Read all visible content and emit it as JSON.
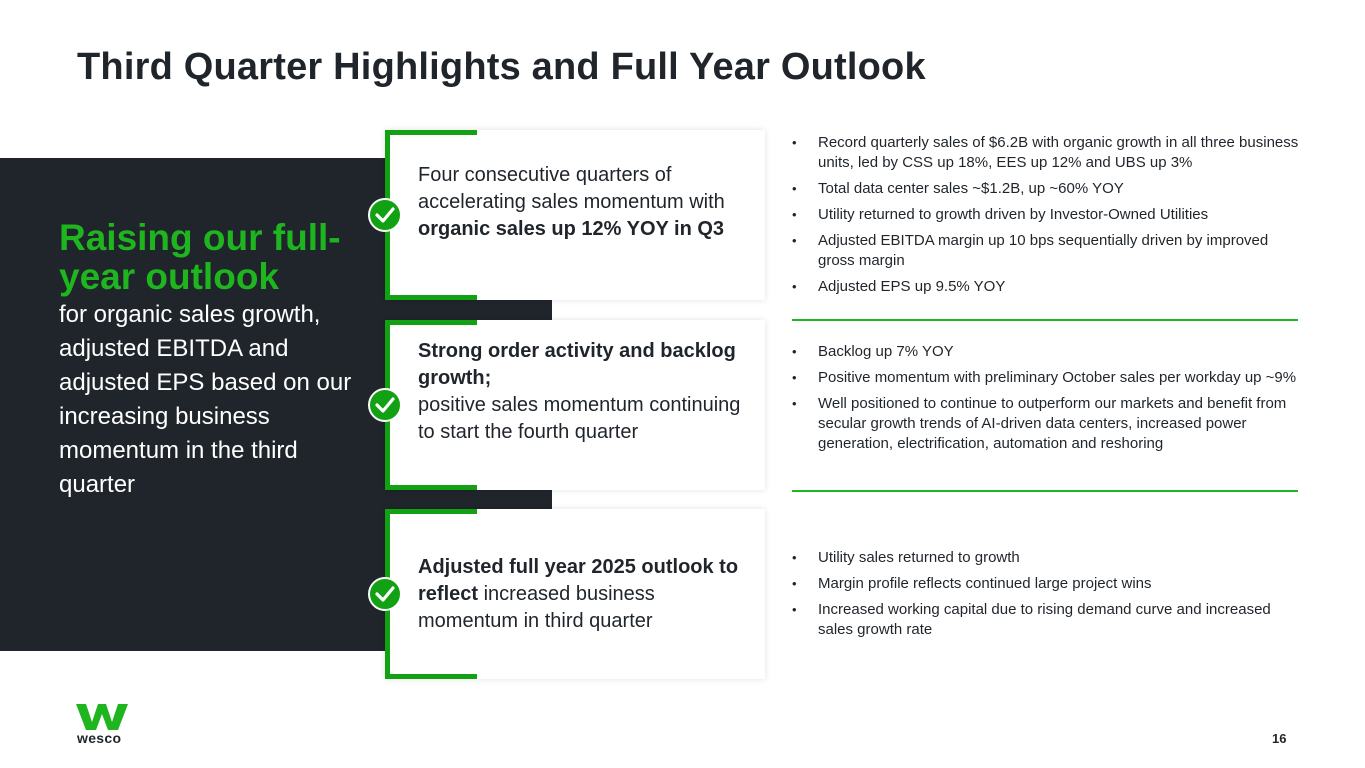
{
  "title": "Third Quarter Highlights and Full Year Outlook",
  "left_panel": {
    "headline": "Raising our full-year outlook",
    "subtext": "for organic sales growth, adjusted EBITDA and adjusted EPS based on our increasing business momentum in the third quarter"
  },
  "cards": [
    {
      "text_a": "Four consecutive quarters of accelerating sales momentum with ",
      "bold_a": "organic sales up 12% YOY in Q3",
      "bullets": [
        "Record quarterly sales of $6.2B with organic growth in all three business units, led by CSS up 18%, EES up 12% and UBS up 3%",
        "Total data center sales ~$1.2B, up ~60% YOY",
        "Utility returned to growth driven by Investor-Owned Utilities",
        "Adjusted EBITDA margin up 10 bps sequentially driven by improved gross margin",
        "Adjusted EPS up 9.5% YOY"
      ]
    },
    {
      "bold_a": "Strong order activity and backlog growth;",
      "text_a": "positive sales momentum continuing to start the fourth quarter",
      "bullets": [
        "Backlog up 7% YOY",
        "Positive momentum with preliminary October sales per workday up ~9%",
        "Well positioned to continue to outperform our markets and benefit from secular growth trends of AI-driven data centers, increased power generation, electrification, automation and reshoring"
      ]
    },
    {
      "bold_a": "Adjusted full year 2025 outlook to reflect",
      "text_a": " increased business momentum in third quarter",
      "bullets": [
        "Utility sales returned to growth",
        "Margin profile reflects continued large project wins",
        "Increased working capital due to rising demand curve and increased sales growth rate"
      ]
    }
  ],
  "logo": {
    "wordmark": "wesco"
  },
  "page_number": "16",
  "colors": {
    "accent_green": "#1fb51f",
    "dark_panel": "#1f252b",
    "bracket_green": "#12a112"
  },
  "icons": {
    "check": "check-circle-icon",
    "logo": "wesco-logo-icon"
  }
}
